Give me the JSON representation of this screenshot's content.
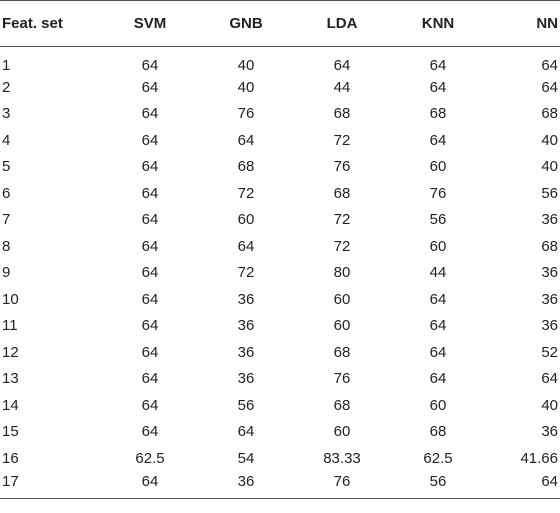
{
  "table": {
    "headers": [
      "Feat. set",
      "SVM",
      "GNB",
      "LDA",
      "KNN",
      "NN"
    ],
    "rows": [
      [
        "1",
        "64",
        "40",
        "64",
        "64",
        "64"
      ],
      [
        "2",
        "64",
        "40",
        "44",
        "64",
        "64"
      ],
      [
        "3",
        "64",
        "76",
        "68",
        "68",
        "68"
      ],
      [
        "4",
        "64",
        "64",
        "72",
        "64",
        "40"
      ],
      [
        "5",
        "64",
        "68",
        "76",
        "60",
        "40"
      ],
      [
        "6",
        "64",
        "72",
        "68",
        "76",
        "56"
      ],
      [
        "7",
        "64",
        "60",
        "72",
        "56",
        "36"
      ],
      [
        "8",
        "64",
        "64",
        "72",
        "60",
        "68"
      ],
      [
        "9",
        "64",
        "72",
        "80",
        "44",
        "36"
      ],
      [
        "10",
        "64",
        "36",
        "60",
        "64",
        "36"
      ],
      [
        "11",
        "64",
        "36",
        "60",
        "64",
        "36"
      ],
      [
        "12",
        "64",
        "36",
        "68",
        "64",
        "52"
      ],
      [
        "13",
        "64",
        "36",
        "76",
        "64",
        "64"
      ],
      [
        "14",
        "64",
        "56",
        "68",
        "60",
        "40"
      ],
      [
        "15",
        "64",
        "64",
        "60",
        "68",
        "36"
      ],
      [
        "16",
        "62.5",
        "54",
        "83.33",
        "62.5",
        "41.66"
      ],
      [
        "17",
        "64",
        "36",
        "76",
        "56",
        "64"
      ]
    ]
  }
}
